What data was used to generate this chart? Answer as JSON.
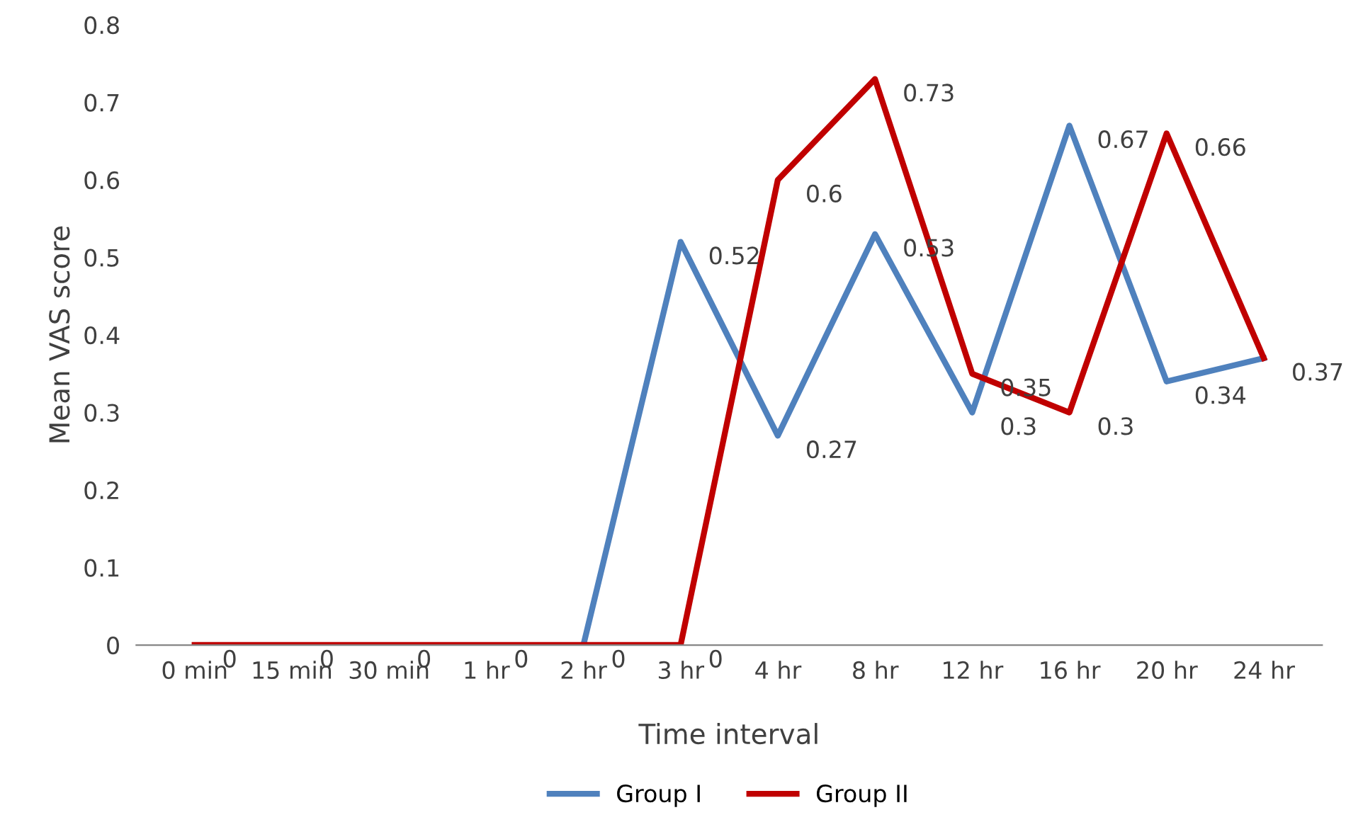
{
  "chart_data": {
    "type": "line",
    "xlabel": "Time interval",
    "ylabel": "Mean VAS score",
    "categories": [
      "0 min",
      "15 min",
      "30 min",
      "1 hr",
      "2 hr",
      "3 hr",
      "4 hr",
      "8 hr",
      "12 hr",
      "16 hr",
      "20 hr",
      "24 hr"
    ],
    "series": [
      {
        "name": "Group I",
        "color": "#4f81bd",
        "values": [
          null,
          null,
          null,
          null,
          0,
          0.52,
          0.27,
          0.53,
          0.3,
          0.67,
          0.34,
          0.37
        ],
        "value_labels": [
          null,
          null,
          null,
          null,
          null,
          "0.52",
          "0.27",
          "0.53",
          "0.3",
          "0.67",
          "0.34",
          null
        ]
      },
      {
        "name": "Group II",
        "color": "#c00000",
        "values": [
          0,
          0,
          0,
          0,
          0,
          0,
          0.6,
          0.73,
          0.35,
          0.3,
          0.66,
          0.37
        ],
        "value_labels": [
          "0",
          "0",
          "0",
          "0",
          "0",
          "0",
          "0.6",
          "0.73",
          "0.35",
          "0.3",
          "0.66",
          "0.37"
        ]
      }
    ],
    "ylim": [
      0,
      0.8
    ],
    "yticks": [
      0,
      0.1,
      0.2,
      0.3,
      0.4,
      0.5,
      0.6,
      0.7,
      0.8
    ],
    "grid": false,
    "legend": "bottom",
    "marker": "none",
    "line_style": "solid"
  }
}
